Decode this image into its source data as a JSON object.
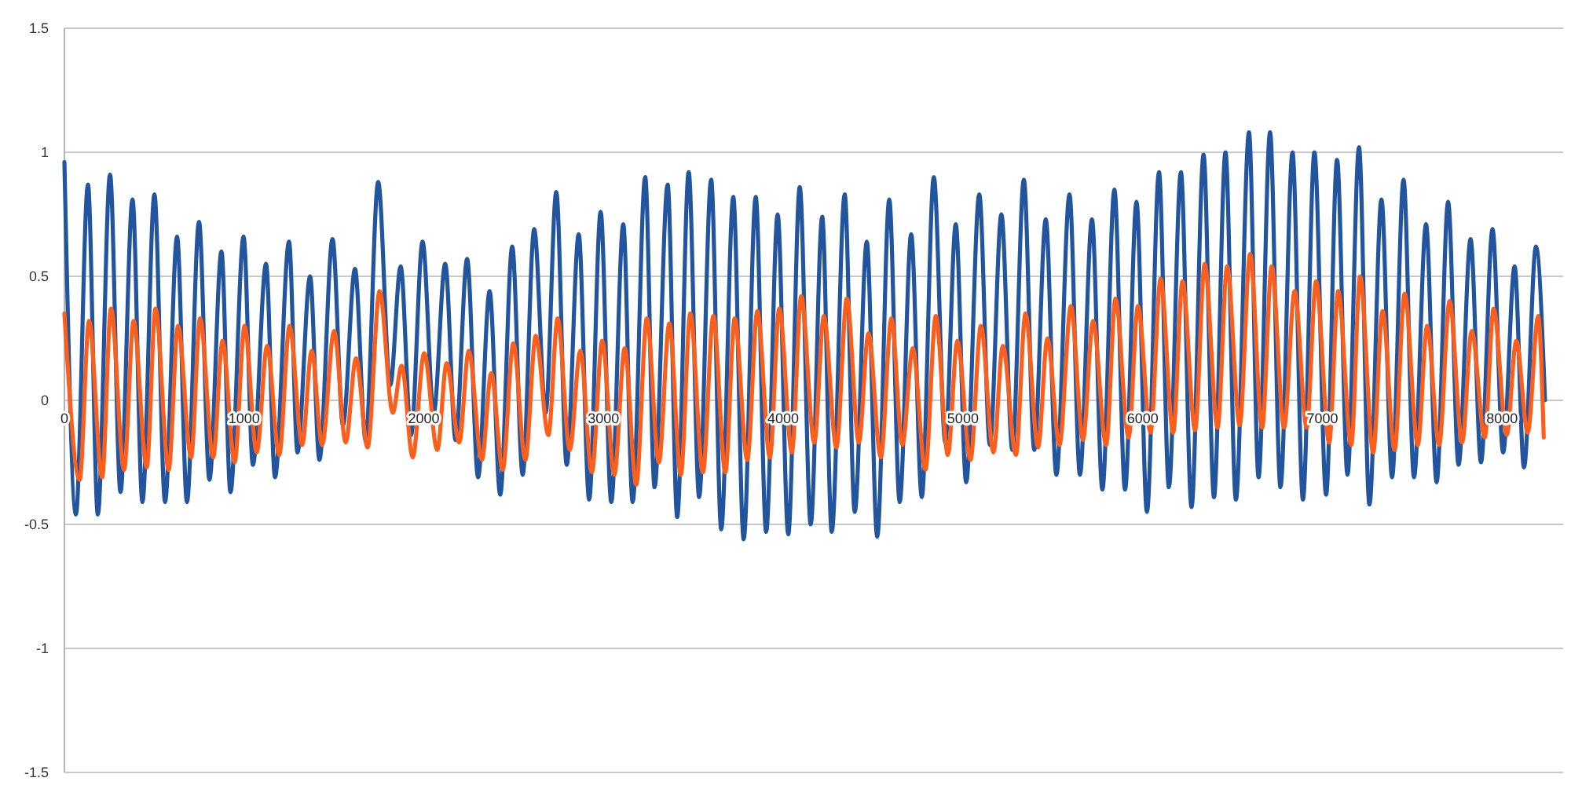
{
  "chart_data": {
    "type": "line",
    "xlim": [
      0,
      8340
    ],
    "xticks": [
      0,
      1000,
      2000,
      3000,
      4000,
      5000,
      6000,
      7000,
      8000
    ],
    "ylim": [
      -1.5,
      1.5
    ],
    "yticks": [
      1.5,
      1,
      0.5,
      0,
      -0.5,
      -1,
      -1.5
    ],
    "grid": "y",
    "series": [
      {
        "color": "#22559e",
        "x": [
          0,
          64,
          131,
          186,
          254,
          312,
          379,
          434,
          501,
          560,
          627,
          682,
          749,
          807,
          874,
          924,
          997,
          1049,
          1122,
          1172,
          1250,
          1297,
          1367,
          1419,
          1492,
          1550,
          1617,
          1676,
          1746,
          1813,
          1871,
          1929,
          1993,
          2055,
          2119,
          2177,
          2241,
          2302,
          2366,
          2425,
          2492,
          2550,
          2614,
          2678,
          2737,
          2795,
          2862,
          2920,
          2984,
          3043,
          3110,
          3162,
          3232,
          3284,
          3357,
          3410,
          3474,
          3532,
          3599,
          3655,
          3722,
          3780,
          3847,
          3905,
          3969,
          4028,
          4092,
          4153,
          4217,
          4270,
          4342,
          4398,
          4465,
          4523,
          4590,
          4648,
          4712,
          4771,
          4838,
          4902,
          4960,
          5018,
          5091,
          5150,
          5214,
          5275,
          5339,
          5397,
          5461,
          5520,
          5593,
          5651,
          5718,
          5776,
          5843,
          5902,
          5966,
          6024,
          6091,
          6146,
          6213,
          6272,
          6339,
          6397,
          6461,
          6519,
          6592,
          6645,
          6709,
          6767,
          6834,
          6892,
          6956,
          7021,
          7082,
          7140,
          7204,
          7262,
          7329,
          7388,
          7452,
          7510,
          7577,
          7636,
          7700,
          7758,
          7825,
          7883,
          7947,
          8006,
          8070,
          8122,
          8189,
          8239
        ],
        "values": [
          0.96,
          -0.46,
          0.87,
          -0.46,
          0.91,
          -0.37,
          0.81,
          -0.41,
          0.83,
          -0.41,
          0.66,
          -0.41,
          0.72,
          -0.32,
          0.6,
          -0.37,
          0.66,
          -0.26,
          0.55,
          -0.31,
          0.64,
          -0.21,
          0.5,
          -0.24,
          0.65,
          -0.1,
          0.53,
          -0.16,
          0.88,
          0.06,
          0.54,
          -0.14,
          0.64,
          -0.05,
          0.55,
          -0.16,
          0.57,
          -0.31,
          0.44,
          -0.38,
          0.62,
          -0.3,
          0.69,
          -0.05,
          0.84,
          -0.26,
          0.67,
          -0.4,
          0.76,
          -0.41,
          0.71,
          -0.41,
          0.9,
          -0.35,
          0.87,
          -0.47,
          0.92,
          -0.39,
          0.89,
          -0.52,
          0.82,
          -0.56,
          0.82,
          -0.53,
          0.75,
          -0.54,
          0.86,
          -0.5,
          0.74,
          -0.53,
          0.83,
          -0.45,
          0.64,
          -0.55,
          0.81,
          -0.41,
          0.67,
          -0.39,
          0.9,
          -0.17,
          0.71,
          -0.33,
          0.83,
          -0.18,
          0.75,
          -0.2,
          0.89,
          -0.2,
          0.73,
          -0.3,
          0.83,
          -0.3,
          0.73,
          -0.36,
          0.85,
          -0.36,
          0.8,
          -0.45,
          0.92,
          -0.35,
          0.92,
          -0.43,
          0.99,
          -0.39,
          1,
          -0.4,
          1.08,
          -0.31,
          1.08,
          -0.35,
          1,
          -0.4,
          1,
          -0.38,
          0.97,
          -0.3,
          1.02,
          -0.42,
          0.81,
          -0.31,
          0.89,
          -0.31,
          0.71,
          -0.33,
          0.8,
          -0.26,
          0.65,
          -0.25,
          0.69,
          -0.21,
          0.54,
          -0.27,
          0.62,
          0
        ]
      },
      {
        "color": "#fa5f1e",
        "x": [
          0,
          85,
          137,
          210,
          259,
          332,
          385,
          458,
          507,
          580,
          632,
          705,
          755,
          828,
          880,
          947,
          1003,
          1070,
          1128,
          1195,
          1253,
          1323,
          1376,
          1434,
          1501,
          1565,
          1623,
          1687,
          1754,
          1827,
          1877,
          1938,
          2002,
          2075,
          2127,
          2197,
          2250,
          2323,
          2375,
          2439,
          2498,
          2565,
          2623,
          2693,
          2745,
          2812,
          2871,
          2935,
          2993,
          3060,
          3118,
          3182,
          3241,
          3308,
          3366,
          3430,
          3483,
          3553,
          3611,
          3678,
          3730,
          3800,
          3856,
          3926,
          3978,
          4048,
          4100,
          4173,
          4226,
          4296,
          4354,
          4421,
          4474,
          4543,
          4602,
          4663,
          4721,
          4791,
          4849,
          4916,
          4969,
          5042,
          5100,
          5170,
          5222,
          5295,
          5348,
          5418,
          5470,
          5537,
          5601,
          5668,
          5724,
          5797,
          5849,
          5922,
          5974,
          6044,
          6100,
          6170,
          6222,
          6292,
          6345,
          6417,
          6470,
          6540,
          6598,
          6665,
          6718,
          6787,
          6846,
          6913,
          6965,
          7038,
          7088,
          7161,
          7210,
          7283,
          7335,
          7402,
          7458,
          7531,
          7583,
          7650,
          7708,
          7778,
          7831,
          7904,
          7953,
          8026,
          8079,
          8143,
          8201,
          8232
        ],
        "values": [
          0.35,
          -0.32,
          0.32,
          -0.31,
          0.37,
          -0.28,
          0.32,
          -0.27,
          0.37,
          -0.28,
          0.3,
          -0.23,
          0.33,
          -0.23,
          0.24,
          -0.25,
          0.3,
          -0.21,
          0.22,
          -0.22,
          0.3,
          -0.18,
          0.2,
          -0.18,
          0.28,
          -0.17,
          0.17,
          -0.19,
          0.44,
          -0.05,
          0.14,
          -0.23,
          0.19,
          -0.2,
          0.15,
          -0.17,
          0.2,
          -0.24,
          0.11,
          -0.28,
          0.23,
          -0.24,
          0.26,
          -0.14,
          0.33,
          -0.2,
          0.2,
          -0.29,
          0.24,
          -0.3,
          0.21,
          -0.34,
          0.33,
          -0.25,
          0.31,
          -0.3,
          0.35,
          -0.29,
          0.34,
          -0.29,
          0.33,
          -0.24,
          0.36,
          -0.23,
          0.37,
          -0.21,
          0.42,
          -0.17,
          0.34,
          -0.19,
          0.41,
          -0.17,
          0.27,
          -0.23,
          0.33,
          -0.18,
          0.21,
          -0.28,
          0.34,
          -0.22,
          0.24,
          -0.24,
          0.3,
          -0.21,
          0.22,
          -0.22,
          0.35,
          -0.19,
          0.25,
          -0.18,
          0.38,
          -0.16,
          0.32,
          -0.18,
          0.41,
          -0.15,
          0.38,
          -0.13,
          0.49,
          -0.13,
          0.48,
          -0.12,
          0.55,
          -0.11,
          0.54,
          -0.1,
          0.59,
          -0.11,
          0.54,
          -0.11,
          0.44,
          -0.11,
          0.48,
          -0.17,
          0.44,
          -0.18,
          0.5,
          -0.21,
          0.36,
          -0.2,
          0.43,
          -0.18,
          0.3,
          -0.18,
          0.4,
          -0.17,
          0.28,
          -0.15,
          0.37,
          -0.14,
          0.24,
          -0.13,
          0.34,
          -0.15
        ]
      }
    ]
  }
}
